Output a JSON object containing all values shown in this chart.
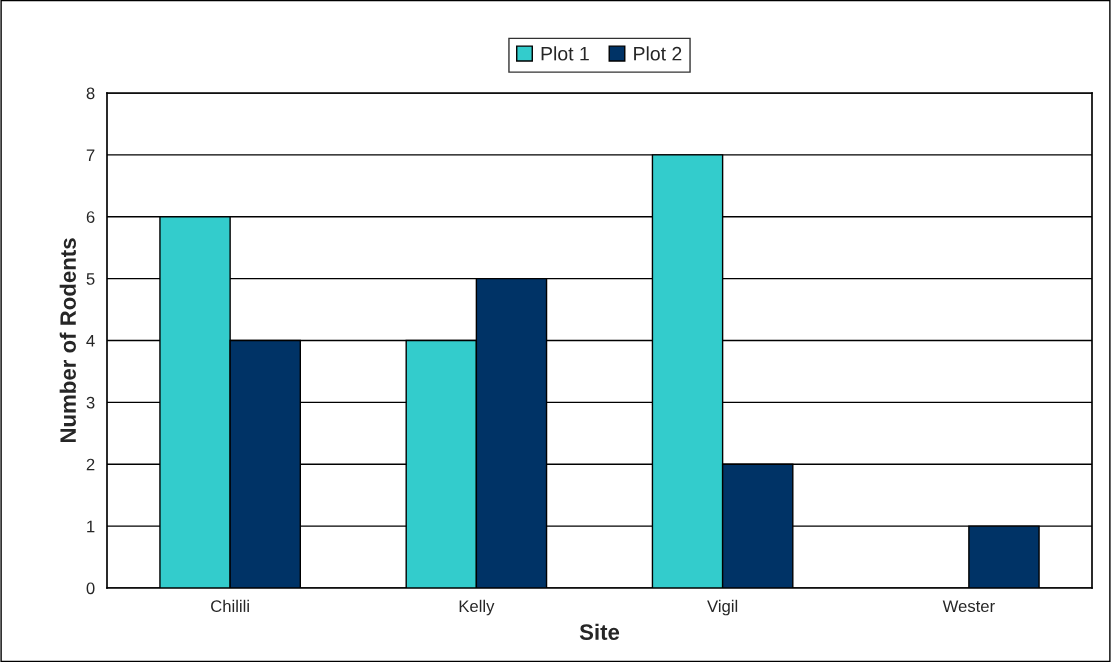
{
  "chart_data": {
    "type": "bar",
    "xlabel": "Site",
    "ylabel": "Number of Rodents",
    "categories": [
      "Chilili",
      "Kelly",
      "Vigil",
      "Wester"
    ],
    "series": [
      {
        "name": "Plot 1",
        "color": "#33cccc",
        "values": [
          6,
          4,
          7,
          0
        ]
      },
      {
        "name": "Plot 2",
        "color": "#003366",
        "values": [
          4,
          5,
          2,
          1
        ]
      }
    ],
    "ylim": [
      0,
      8
    ],
    "yticks": [
      0,
      1,
      2,
      3,
      4,
      5,
      6,
      7,
      8
    ],
    "grid": "y",
    "legend": "top"
  }
}
